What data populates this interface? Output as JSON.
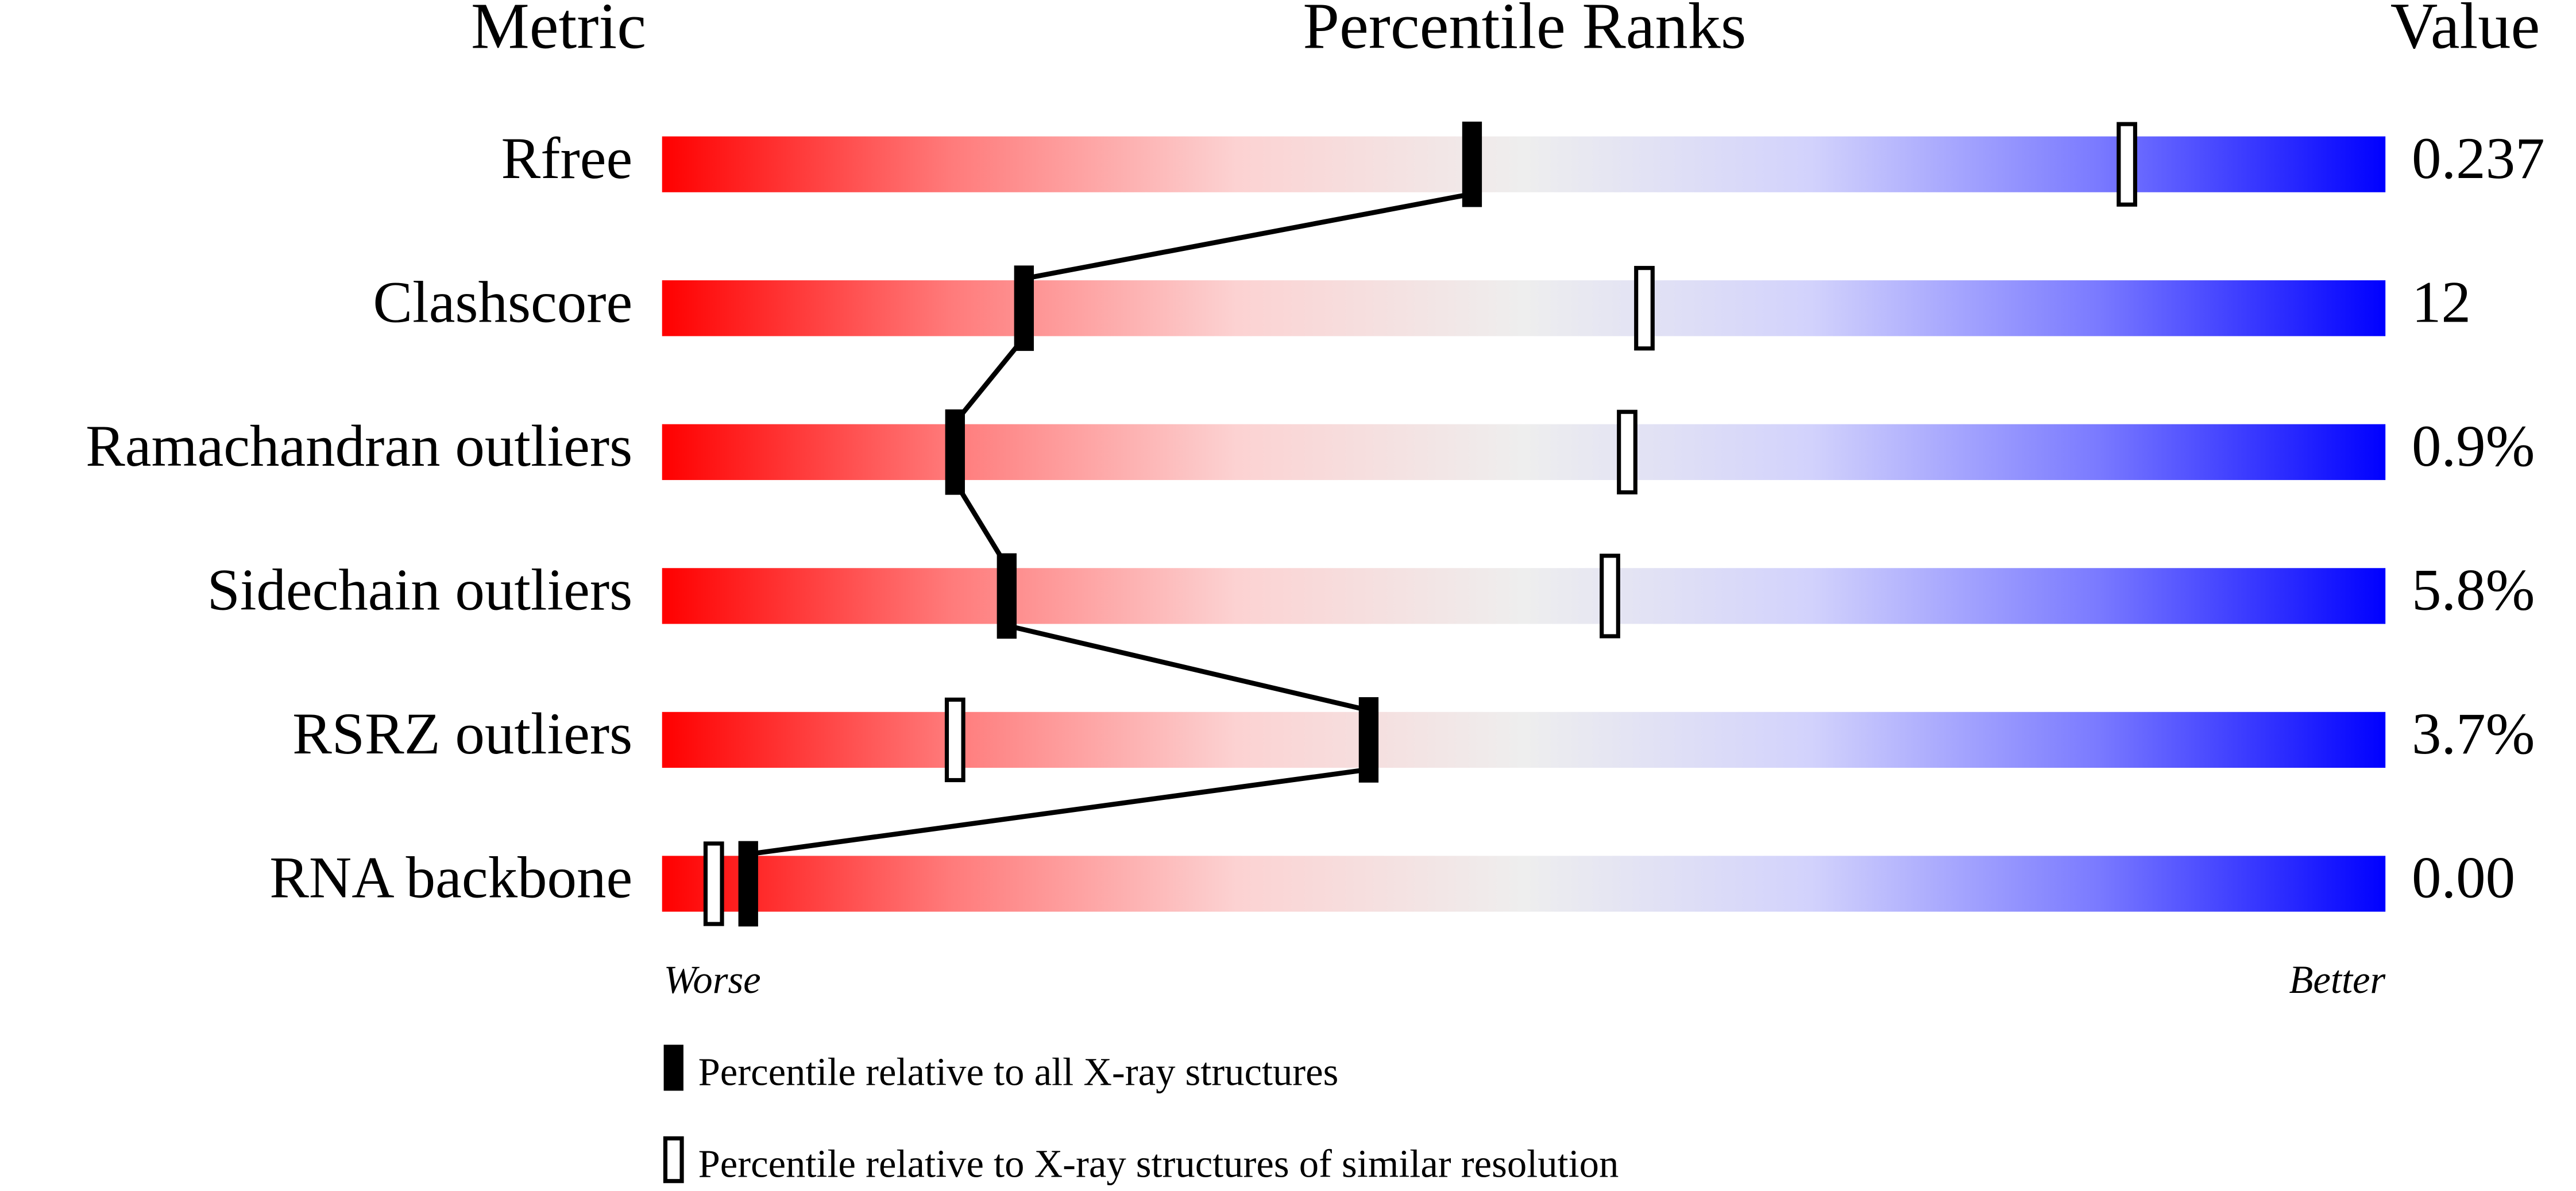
{
  "chart_data": {
    "type": "percentile",
    "headers": [
      "Metric",
      "Percentile Ranks",
      "Value"
    ],
    "categories": [
      "Rfree",
      "Clashscore",
      "Ramachandran outliers",
      "Sidechain outliers",
      "RSRZ outliers",
      "RNA backbone"
    ],
    "metric_values": [
      "0.237",
      "12",
      "0.9%",
      "5.8%",
      "3.7%",
      "0.00"
    ],
    "series": [
      {
        "name": "Percentile relative to all X-ray structures",
        "color": "#000000",
        "values": [
          47,
          21,
          17,
          20,
          41,
          5
        ]
      },
      {
        "name": "Percentile relative to X-ray structures of similar resolution",
        "color": "#ffffff",
        "values": [
          85,
          57,
          56,
          55,
          17,
          3
        ]
      }
    ],
    "xlim": [
      0,
      100
    ],
    "axis_labels": [
      "Worse",
      "Better"
    ],
    "gradient_colors": [
      "#ff0000",
      "#ff7a7a",
      "#fcd2d2",
      "#eeeeee",
      "#d2d2fc",
      "#7a7aff",
      "#0000ff"
    ]
  }
}
